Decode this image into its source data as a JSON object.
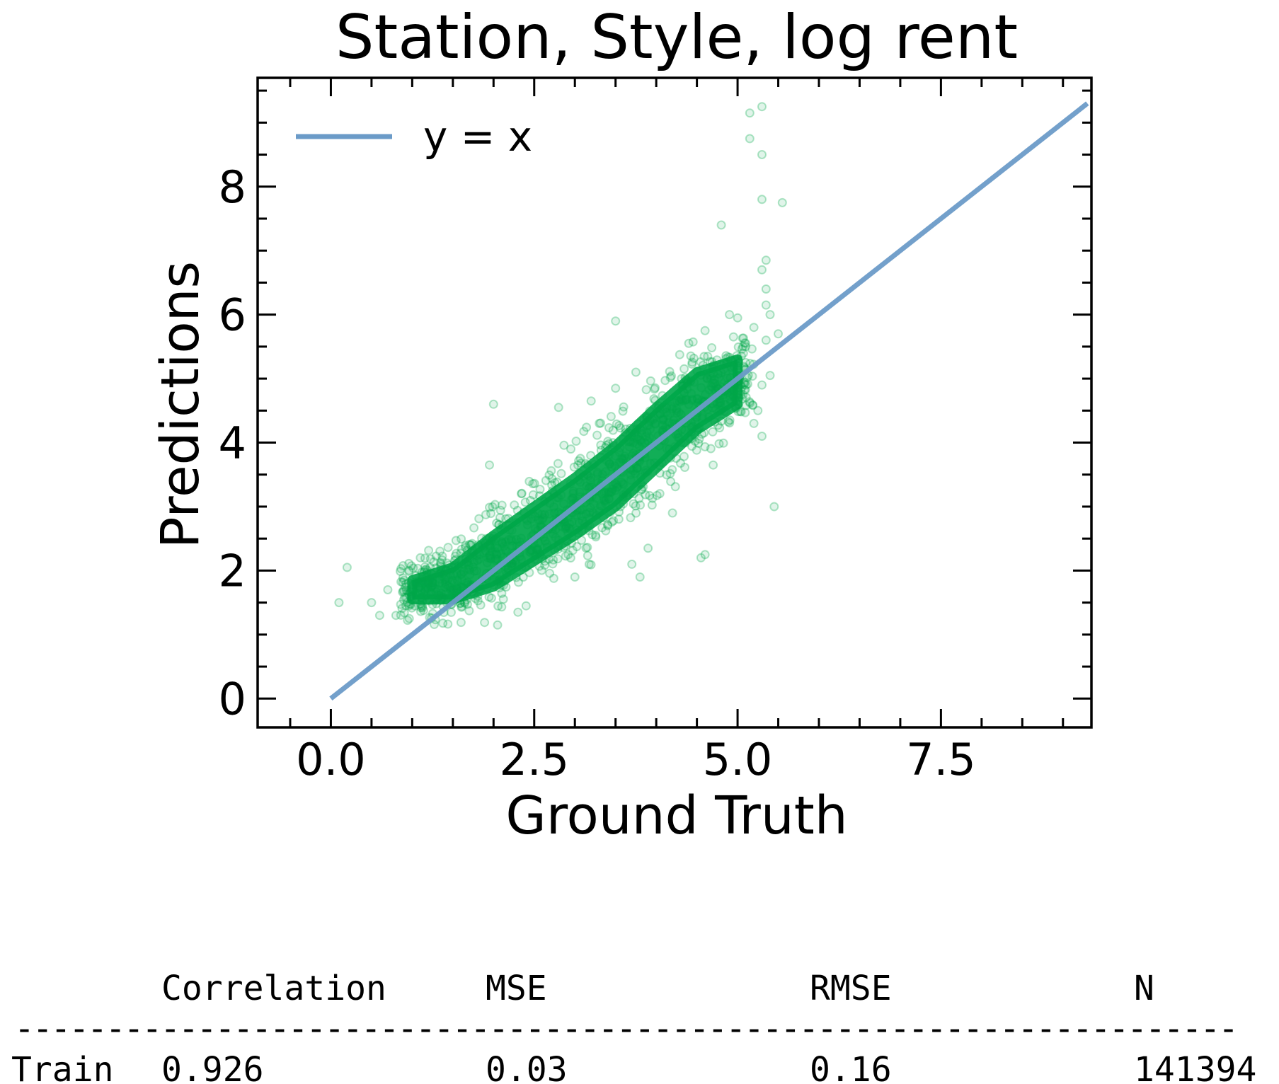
{
  "chart_data": {
    "type": "scatter",
    "title": "Station, Style, log rent",
    "xlabel": "Ground Truth",
    "ylabel": "Predictions",
    "xlim": [
      -0.9,
      9.35
    ],
    "ylim": [
      -0.45,
      9.7
    ],
    "xticks": [
      "0.0",
      "2.5",
      "5.0",
      "7.5"
    ],
    "yticks": [
      "0",
      "2",
      "4",
      "6",
      "8"
    ],
    "grid": false,
    "legend_position": "top-left",
    "colors": {
      "points": "#00a84a",
      "identity_line": "#6b9bc8"
    },
    "reference_line": {
      "label": "y = x",
      "x": [
        0,
        9.3
      ],
      "y": [
        0,
        9.3
      ]
    },
    "series": [
      {
        "core_band": {
          "x": [
            1.0,
            1.5,
            2.0,
            2.5,
            3.0,
            3.5,
            4.0,
            4.5,
            5.0
          ],
          "y_low": [
            1.55,
            1.55,
            1.75,
            2.15,
            2.55,
            3.0,
            3.6,
            4.2,
            4.6
          ],
          "y_high": [
            1.85,
            2.05,
            2.55,
            3.0,
            3.45,
            3.95,
            4.55,
            5.1,
            5.3
          ]
        },
        "outliers": [
          {
            "x": 0.2,
            "y": 2.05
          },
          {
            "x": 0.1,
            "y": 1.5
          },
          {
            "x": 0.5,
            "y": 1.5
          },
          {
            "x": 0.6,
            "y": 1.3
          },
          {
            "x": 0.7,
            "y": 1.7
          },
          {
            "x": 0.8,
            "y": 1.3
          },
          {
            "x": 0.9,
            "y": 1.85
          },
          {
            "x": 2.0,
            "y": 4.6
          },
          {
            "x": 1.95,
            "y": 3.65
          },
          {
            "x": 2.05,
            "y": 1.15
          },
          {
            "x": 2.4,
            "y": 1.45
          },
          {
            "x": 2.8,
            "y": 4.55
          },
          {
            "x": 3.0,
            "y": 1.9
          },
          {
            "x": 3.2,
            "y": 4.65
          },
          {
            "x": 3.5,
            "y": 4.85
          },
          {
            "x": 3.7,
            "y": 2.1
          },
          {
            "x": 3.8,
            "y": 1.9
          },
          {
            "x": 3.75,
            "y": 5.1
          },
          {
            "x": 3.5,
            "y": 5.9
          },
          {
            "x": 4.2,
            "y": 2.9
          },
          {
            "x": 4.6,
            "y": 2.25
          },
          {
            "x": 4.55,
            "y": 2.2
          },
          {
            "x": 4.7,
            "y": 3.65
          },
          {
            "x": 4.8,
            "y": 7.4
          },
          {
            "x": 5.15,
            "y": 8.75
          },
          {
            "x": 5.3,
            "y": 8.5
          },
          {
            "x": 5.3,
            "y": 7.8
          },
          {
            "x": 5.55,
            "y": 7.75
          },
          {
            "x": 5.3,
            "y": 9.25
          },
          {
            "x": 5.15,
            "y": 9.15
          },
          {
            "x": 5.3,
            "y": 6.7
          },
          {
            "x": 5.35,
            "y": 6.85
          },
          {
            "x": 5.35,
            "y": 6.4
          },
          {
            "x": 5.35,
            "y": 6.15
          },
          {
            "x": 5.4,
            "y": 6.0
          },
          {
            "x": 5.5,
            "y": 5.7
          },
          {
            "x": 5.45,
            "y": 3.0
          },
          {
            "x": 5.3,
            "y": 4.1
          },
          {
            "x": 5.3,
            "y": 4.9
          },
          {
            "x": 5.4,
            "y": 5.05
          },
          {
            "x": 5.0,
            "y": 5.95
          },
          {
            "x": 5.1,
            "y": 5.5
          },
          {
            "x": 4.6,
            "y": 5.75
          },
          {
            "x": 4.4,
            "y": 5.55
          },
          {
            "x": 5.2,
            "y": 5.8
          },
          {
            "x": 4.9,
            "y": 6.0
          },
          {
            "x": 5.25,
            "y": 4.5
          },
          {
            "x": 5.2,
            "y": 4.3
          },
          {
            "x": 5.35,
            "y": 5.6
          },
          {
            "x": 3.3,
            "y": 4.3
          },
          {
            "x": 2.95,
            "y": 3.9
          },
          {
            "x": 1.1,
            "y": 2.2
          },
          {
            "x": 2.3,
            "y": 1.35
          },
          {
            "x": 3.9,
            "y": 2.35
          }
        ]
      }
    ]
  },
  "stats_table": {
    "headers": [
      "",
      "Correlation",
      "MSE",
      "RMSE",
      "N"
    ],
    "separator": "-------------------------------------------------------------------",
    "rows": [
      {
        "label": "Train",
        "correlation": "0.926",
        "mse": "0.03",
        "rmse": "0.16",
        "n": "141394"
      }
    ]
  }
}
